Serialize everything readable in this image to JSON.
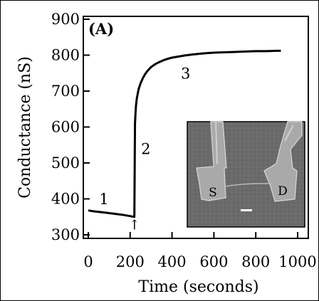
{
  "chart_data": {
    "type": "line",
    "panel_label": "(A)",
    "xlabel": "Time (seconds)",
    "ylabel": "Conductance (nS)",
    "xlim": [
      0,
      1000
    ],
    "ylim": [
      300,
      900
    ],
    "x_ticks": [
      0,
      200,
      400,
      600,
      800,
      1000
    ],
    "y_ticks": [
      300,
      400,
      500,
      600,
      700,
      800,
      900
    ],
    "grid": false,
    "series": [
      {
        "x": [
          0,
          20,
          50,
          80,
          120,
          160,
          200,
          220,
          221,
          222,
          223,
          225,
          228,
          232,
          240,
          250,
          260,
          270,
          280,
          290,
          300,
          320,
          340,
          360,
          380,
          400,
          430,
          460,
          500,
          550,
          600,
          650,
          700,
          750,
          800,
          850,
          900,
          920
        ],
        "y": [
          368,
          366,
          364,
          362,
          359,
          356,
          352,
          350,
          440,
          530,
          610,
          635,
          660,
          680,
          705,
          722,
          735,
          746,
          754,
          761,
          767,
          775,
          781,
          786,
          790,
          793,
          796,
          799,
          802,
          805,
          807,
          808,
          809,
          810,
          811,
          811,
          812,
          812
        ]
      }
    ],
    "annotations": [
      {
        "text": "1",
        "x": 75,
        "y": 385
      },
      {
        "text": "2",
        "x": 275,
        "y": 525
      },
      {
        "text": "3",
        "x": 465,
        "y": 735
      },
      {
        "text": "↑",
        "x": 221,
        "y": 315
      }
    ],
    "inset": {
      "type": "SEM micrograph",
      "labels": [
        "S",
        "D"
      ]
    }
  }
}
